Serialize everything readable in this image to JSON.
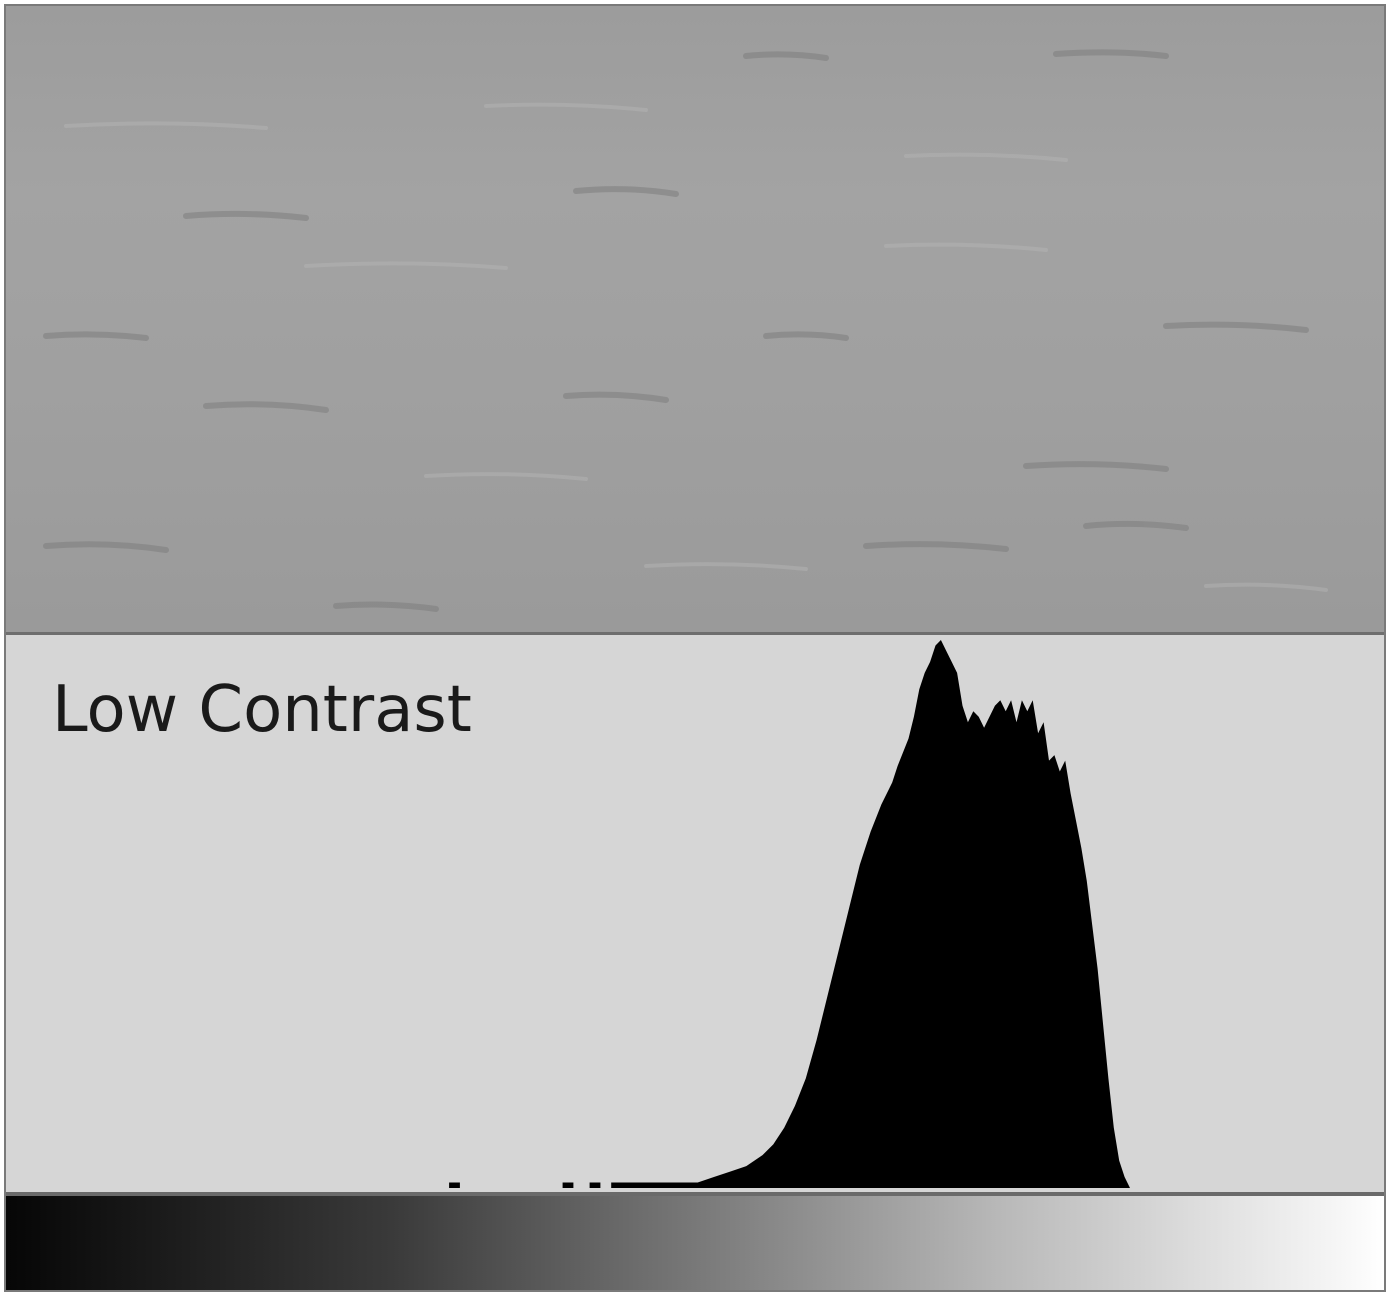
{
  "chart_data": {
    "type": "area",
    "title": "Low Contrast",
    "xlabel": "",
    "ylabel": "",
    "xlim": [
      0,
      255
    ],
    "ylim": [
      0,
      100
    ],
    "grid": false,
    "legend": "none",
    "series": [
      {
        "values": [
          [
            0,
            0
          ],
          [
            82,
            0
          ],
          [
            82,
            1
          ],
          [
            84,
            1
          ],
          [
            84,
            0
          ],
          [
            103,
            0
          ],
          [
            103,
            1
          ],
          [
            105,
            1
          ],
          [
            105,
            0
          ],
          [
            108,
            0
          ],
          [
            108,
            1
          ],
          [
            110,
            1
          ],
          [
            110,
            0
          ],
          [
            112,
            0
          ],
          [
            112,
            1
          ],
          [
            125,
            1
          ],
          [
            128,
            1
          ],
          [
            131,
            2
          ],
          [
            134,
            3
          ],
          [
            137,
            4
          ],
          [
            140,
            6
          ],
          [
            142,
            8
          ],
          [
            144,
            11
          ],
          [
            146,
            15
          ],
          [
            148,
            20
          ],
          [
            150,
            27
          ],
          [
            152,
            35
          ],
          [
            154,
            43
          ],
          [
            156,
            51
          ],
          [
            158,
            59
          ],
          [
            160,
            65
          ],
          [
            162,
            70
          ],
          [
            164,
            74
          ],
          [
            165,
            77
          ],
          [
            167,
            82
          ],
          [
            168,
            86
          ],
          [
            169,
            91
          ],
          [
            170,
            94
          ],
          [
            171,
            96
          ],
          [
            172,
            99
          ],
          [
            173,
            100
          ],
          [
            174,
            98
          ],
          [
            175,
            96
          ],
          [
            176,
            94
          ],
          [
            177,
            88
          ],
          [
            178,
            85
          ],
          [
            179,
            87
          ],
          [
            180,
            86
          ],
          [
            181,
            84
          ],
          [
            182,
            86
          ],
          [
            183,
            88
          ],
          [
            184,
            89
          ],
          [
            185,
            87
          ],
          [
            186,
            89
          ],
          [
            187,
            85
          ],
          [
            188,
            89
          ],
          [
            189,
            87
          ],
          [
            190,
            89
          ],
          [
            191,
            83
          ],
          [
            192,
            85
          ],
          [
            193,
            78
          ],
          [
            194,
            79
          ],
          [
            195,
            76
          ],
          [
            196,
            78
          ],
          [
            197,
            72
          ],
          [
            198,
            67
          ],
          [
            199,
            62
          ],
          [
            200,
            56
          ],
          [
            201,
            48
          ],
          [
            202,
            40
          ],
          [
            203,
            30
          ],
          [
            204,
            20
          ],
          [
            205,
            11
          ],
          [
            206,
            5
          ],
          [
            207,
            2
          ],
          [
            208,
            0
          ],
          [
            255,
            0
          ]
        ]
      }
    ],
    "colors": {
      "fill": "#000000",
      "panel": "#d6d6d6",
      "frame": "#7a7a7a"
    }
  }
}
